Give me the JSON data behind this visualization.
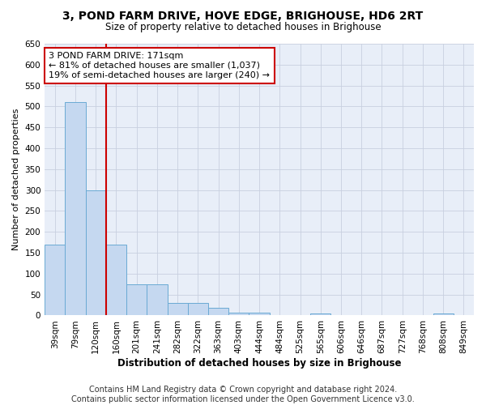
{
  "title": "3, POND FARM DRIVE, HOVE EDGE, BRIGHOUSE, HD6 2RT",
  "subtitle": "Size of property relative to detached houses in Brighouse",
  "xlabel": "Distribution of detached houses by size in Brighouse",
  "ylabel": "Number of detached properties",
  "categories": [
    "39sqm",
    "79sqm",
    "120sqm",
    "160sqm",
    "201sqm",
    "241sqm",
    "282sqm",
    "322sqm",
    "363sqm",
    "403sqm",
    "444sqm",
    "484sqm",
    "525sqm",
    "565sqm",
    "606sqm",
    "646sqm",
    "687sqm",
    "727sqm",
    "768sqm",
    "808sqm",
    "849sqm"
  ],
  "values": [
    170,
    510,
    300,
    170,
    75,
    75,
    30,
    30,
    18,
    7,
    7,
    0,
    0,
    5,
    0,
    0,
    0,
    0,
    0,
    5,
    0
  ],
  "bar_color": "#c5d8f0",
  "bar_edge_color": "#6aaad4",
  "red_line_x": 2.5,
  "annotation_text": "3 POND FARM DRIVE: 171sqm\n← 81% of detached houses are smaller (1,037)\n19% of semi-detached houses are larger (240) →",
  "annotation_box_color": "white",
  "annotation_box_edge_color": "#cc0000",
  "grid_color": "#c8d0e0",
  "bg_color": "#e8eef8",
  "ylim": [
    0,
    650
  ],
  "yticks": [
    0,
    50,
    100,
    150,
    200,
    250,
    300,
    350,
    400,
    450,
    500,
    550,
    600,
    650
  ],
  "footer_text": "Contains HM Land Registry data © Crown copyright and database right 2024.\nContains public sector information licensed under the Open Government Licence v3.0.",
  "title_fontsize": 10,
  "subtitle_fontsize": 8.5,
  "xlabel_fontsize": 8.5,
  "ylabel_fontsize": 8,
  "tick_fontsize": 7.5,
  "annot_fontsize": 8,
  "footer_fontsize": 7
}
